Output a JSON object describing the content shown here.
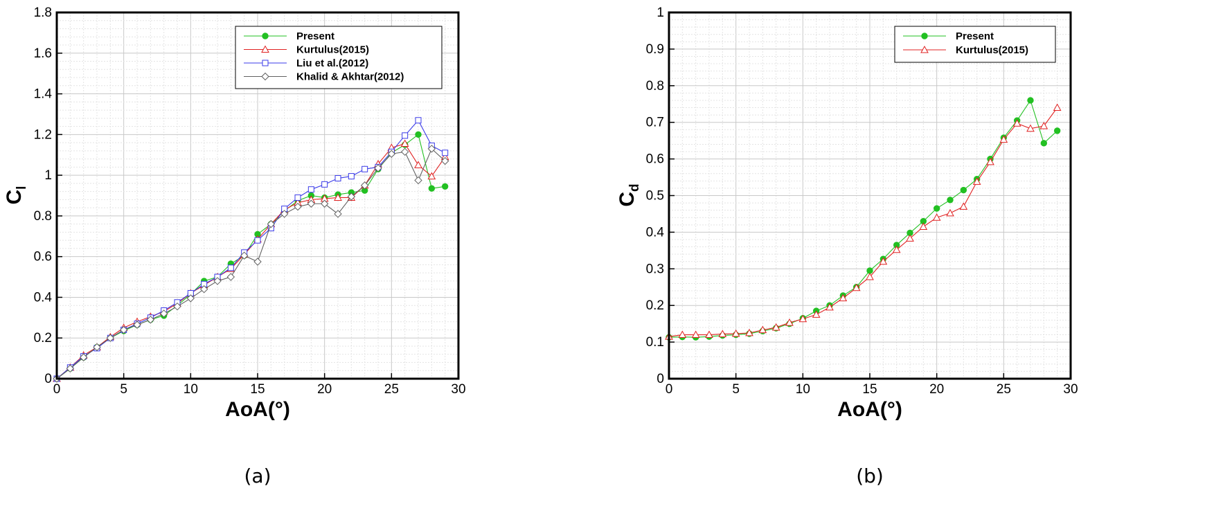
{
  "chart_data": [
    {
      "type": "line",
      "panel_label": "(a)",
      "xlabel": "AoA(°)",
      "ylabel": "C",
      "ylabel_sub": "l",
      "xlim": [
        0,
        30
      ],
      "ylim": [
        0,
        1.8
      ],
      "xticks": [
        0,
        5,
        10,
        15,
        20,
        25,
        30
      ],
      "xtick_labels": [
        "0",
        "5",
        "10",
        "15",
        "20",
        "25",
        "30"
      ],
      "yticks": [
        0,
        0.2,
        0.4,
        0.6,
        0.8,
        1,
        1.2,
        1.4,
        1.6,
        1.8
      ],
      "ytick_labels": [
        "0",
        "0.2",
        "0.4",
        "0.6",
        "0.8",
        "1",
        "1.2",
        "1.4",
        "1.6",
        "1.8"
      ],
      "grid": true,
      "legend_position": "top-right",
      "series": [
        {
          "name": "Present",
          "color": "#22c022",
          "marker": "filled-circle",
          "x": [
            0,
            1,
            2,
            3,
            4,
            5,
            6,
            7,
            8,
            9,
            10,
            11,
            12,
            13,
            14,
            15,
            16,
            17,
            18,
            19,
            20,
            21,
            22,
            23,
            24,
            25,
            26,
            27,
            28,
            29
          ],
          "y": [
            0,
            0.05,
            0.105,
            0.155,
            0.2,
            0.235,
            0.265,
            0.29,
            0.31,
            0.36,
            0.415,
            0.48,
            0.5,
            0.565,
            0.605,
            0.71,
            0.76,
            0.825,
            0.875,
            0.9,
            0.89,
            0.905,
            0.915,
            0.925,
            1.03,
            1.11,
            1.15,
            1.2,
            0.935,
            0.945
          ]
        },
        {
          "name": "Kurtulus(2015)",
          "color": "#e02020",
          "marker": "open-triangle",
          "x": [
            0,
            1,
            2,
            3,
            4,
            5,
            6,
            7,
            8,
            9,
            10,
            11,
            12,
            13,
            14,
            15,
            16,
            17,
            18,
            19,
            20,
            21,
            22,
            23,
            24,
            25,
            26,
            27,
            28,
            29
          ],
          "y": [
            0,
            0.055,
            0.115,
            0.155,
            0.205,
            0.25,
            0.28,
            0.305,
            0.33,
            0.37,
            0.42,
            0.46,
            0.5,
            0.54,
            0.61,
            0.685,
            0.76,
            0.83,
            0.865,
            0.88,
            0.885,
            0.89,
            0.89,
            0.95,
            1.055,
            1.135,
            1.155,
            1.05,
            0.995,
            1.09
          ]
        },
        {
          "name": "Liu et al.(2012)",
          "color": "#3a3ae8",
          "marker": "open-square",
          "x": [
            0,
            1,
            2,
            3,
            4,
            5,
            6,
            7,
            8,
            9,
            10,
            11,
            12,
            13,
            14,
            15,
            16,
            17,
            18,
            19,
            20,
            21,
            22,
            23,
            24,
            25,
            26,
            27,
            28,
            29
          ],
          "y": [
            0,
            0.055,
            0.11,
            0.15,
            0.2,
            0.24,
            0.27,
            0.3,
            0.335,
            0.375,
            0.42,
            0.465,
            0.5,
            0.545,
            0.62,
            0.68,
            0.74,
            0.835,
            0.89,
            0.93,
            0.955,
            0.985,
            0.995,
            1.03,
            1.04,
            1.115,
            1.195,
            1.27,
            1.145,
            1.11
          ]
        },
        {
          "name": "Khalid & Akhtar(2012)",
          "color": "#606060",
          "marker": "open-diamond",
          "x": [
            0,
            1,
            2,
            3,
            4,
            5,
            6,
            7,
            8,
            9,
            10,
            11,
            12,
            13,
            14,
            15,
            16,
            17,
            18,
            19,
            20,
            21,
            22,
            23,
            24,
            25,
            26,
            27,
            28,
            29
          ],
          "y": [
            0,
            0.05,
            0.105,
            0.155,
            0.2,
            0.24,
            0.265,
            0.29,
            0.32,
            0.355,
            0.395,
            0.44,
            0.48,
            0.5,
            0.605,
            0.575,
            0.76,
            0.81,
            0.845,
            0.86,
            0.86,
            0.81,
            0.895,
            0.95,
            1.035,
            1.105,
            1.115,
            0.975,
            1.13,
            1.07
          ]
        }
      ]
    },
    {
      "type": "line",
      "panel_label": "(b)",
      "xlabel": "AoA(°)",
      "ylabel": "C",
      "ylabel_sub": "d",
      "xlim": [
        0,
        30
      ],
      "ylim": [
        0,
        1
      ],
      "xticks": [
        0,
        5,
        10,
        15,
        20,
        25,
        30
      ],
      "xtick_labels": [
        "0",
        "5",
        "10",
        "15",
        "20",
        "25",
        "30"
      ],
      "yticks": [
        0,
        0.1,
        0.2,
        0.3,
        0.4,
        0.5,
        0.6,
        0.7,
        0.8,
        0.9,
        1
      ],
      "ytick_labels": [
        "0",
        "0.1",
        "0.2",
        "0.3",
        "0.4",
        "0.5",
        "0.6",
        "0.7",
        "0.8",
        "0.9",
        "1"
      ],
      "grid": true,
      "legend_position": "top-right",
      "series": [
        {
          "name": "Present",
          "color": "#22c022",
          "marker": "filled-circle",
          "x": [
            0,
            1,
            2,
            3,
            4,
            5,
            6,
            7,
            8,
            9,
            10,
            11,
            12,
            13,
            14,
            15,
            16,
            17,
            18,
            19,
            20,
            21,
            22,
            23,
            24,
            25,
            26,
            27,
            28,
            29
          ],
          "y": [
            0.113,
            0.114,
            0.113,
            0.115,
            0.118,
            0.12,
            0.123,
            0.13,
            0.138,
            0.15,
            0.165,
            0.185,
            0.2,
            0.227,
            0.25,
            0.295,
            0.327,
            0.365,
            0.398,
            0.43,
            0.465,
            0.488,
            0.515,
            0.545,
            0.6,
            0.658,
            0.705,
            0.76,
            0.643,
            0.677
          ]
        },
        {
          "name": "Kurtulus(2015)",
          "color": "#e02020",
          "marker": "open-triangle",
          "x": [
            0,
            1,
            2,
            3,
            4,
            5,
            6,
            7,
            8,
            9,
            10,
            11,
            12,
            13,
            14,
            15,
            16,
            17,
            18,
            19,
            20,
            21,
            22,
            23,
            24,
            25,
            26,
            27,
            28,
            29
          ],
          "y": [
            0.115,
            0.12,
            0.12,
            0.12,
            0.122,
            0.123,
            0.125,
            0.133,
            0.14,
            0.153,
            0.163,
            0.175,
            0.195,
            0.22,
            0.248,
            0.278,
            0.32,
            0.352,
            0.383,
            0.415,
            0.44,
            0.452,
            0.47,
            0.538,
            0.592,
            0.653,
            0.697,
            0.683,
            0.69,
            0.74
          ]
        }
      ]
    }
  ]
}
